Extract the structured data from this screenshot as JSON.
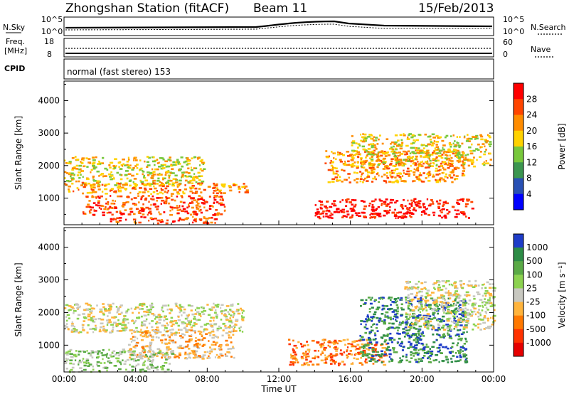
{
  "header": {
    "title": "Zhongshan Station (fitACF)",
    "beam": "Beam 11",
    "date": "15/Feb/2013"
  },
  "status_panel": {
    "nsky_label": "N.Sky",
    "nsearch_label": "N.Search",
    "noise_ticks": [
      "10^5",
      "10^0"
    ],
    "freq_label_1": "Freq.",
    "freq_label_2": "[MHz]",
    "freq_ticks": [
      "18",
      "8"
    ],
    "nave_label": "Nave",
    "nave_ticks": [
      "60",
      "0"
    ],
    "cpid_label": "CPID",
    "cpid_text": "normal (fast stereo) 153"
  },
  "x_axis": {
    "label": "Time UT",
    "ticks": [
      "00:00",
      "04:00",
      "08:00",
      "12:00",
      "16:00",
      "20:00",
      "00:00"
    ]
  },
  "chart_data": [
    {
      "type": "heatmap",
      "name": "power",
      "ylabel": "Slant Range [km]",
      "yticks": [
        1000,
        2000,
        3000,
        4000
      ],
      "ylim": [
        180,
        4600
      ],
      "xlim": [
        0,
        24
      ],
      "colorbar": {
        "label": "Power [dB]",
        "ticks": [
          "28",
          "24",
          "20",
          "16",
          "12",
          "8",
          "4"
        ],
        "colors": [
          "#ff0000",
          "#ff4500",
          "#ff8c00",
          "#ffd200",
          "#78c83c",
          "#3c9650",
          "#2850b4",
          "#0000ff"
        ]
      },
      "bands": [
        {
          "t0": 0.0,
          "t1": 7.8,
          "r0": 1400,
          "r1": 2300,
          "level": 3
        },
        {
          "t0": 0.0,
          "t1": 10.3,
          "r0": 1150,
          "r1": 1500,
          "level": 2
        },
        {
          "t0": 1.0,
          "t1": 9.0,
          "r0": 500,
          "r1": 1100,
          "level": 1
        },
        {
          "t0": 2.5,
          "t1": 8.5,
          "r0": 250,
          "r1": 450,
          "level": 1
        },
        {
          "t0": 14.0,
          "t1": 22.8,
          "r0": 400,
          "r1": 1000,
          "level": 0
        },
        {
          "t0": 14.5,
          "t1": 22.3,
          "r0": 1500,
          "r1": 2500,
          "level": 2
        },
        {
          "t0": 16.0,
          "t1": 23.8,
          "r0": 2000,
          "r1": 3000,
          "level": 3
        }
      ]
    },
    {
      "type": "heatmap",
      "name": "velocity",
      "ylabel": "Slant Range [km]",
      "yticks": [
        1000,
        2000,
        3000,
        4000
      ],
      "ylim": [
        180,
        4600
      ],
      "xlim": [
        0,
        24
      ],
      "colorbar": {
        "label": "Velocity [m s⁻¹]",
        "ticks": [
          "1000",
          "500",
          "100",
          "25",
          "-25",
          "-100",
          "-500",
          "-1000"
        ],
        "colors": [
          "#1e3cc8",
          "#2d8c46",
          "#5aaa46",
          "#8cd250",
          "#c8c8c0",
          "#ffb43c",
          "#ff7800",
          "#ff3200",
          "#e60000"
        ]
      },
      "bands": [
        {
          "t0": 0.0,
          "t1": 10.0,
          "r0": 1400,
          "r1": 2300,
          "level": 4
        },
        {
          "t0": 3.5,
          "t1": 9.5,
          "r0": 600,
          "r1": 1500,
          "level": 5
        },
        {
          "t0": 0.0,
          "t1": 6.0,
          "r0": 200,
          "r1": 900,
          "level": 3
        },
        {
          "t0": 12.5,
          "t1": 18.0,
          "r0": 400,
          "r1": 1200,
          "level": 6
        },
        {
          "t0": 16.5,
          "t1": 22.5,
          "r0": 500,
          "r1": 2500,
          "level": 1
        },
        {
          "t0": 19.0,
          "t1": 24.0,
          "r0": 1500,
          "r1": 3000,
          "level": 4
        }
      ]
    }
  ]
}
